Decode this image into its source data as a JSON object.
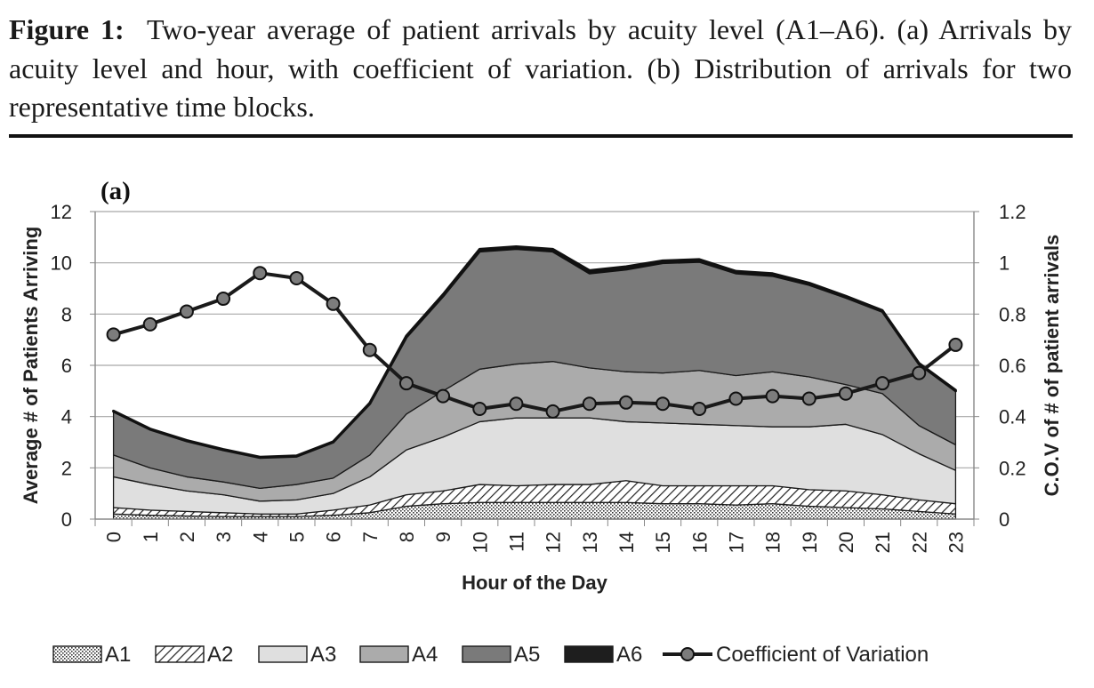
{
  "caption": {
    "label": "Figure 1:",
    "text": "Two-year average of patient arrivals by acuity level (A1–A6). (a) Arrivals by acuity level and hour, with coefficient of variation. (b) Distribution of arrivals for two representative time blocks."
  },
  "chart_data": {
    "type": "area",
    "stacked": true,
    "panel_label": "(a)",
    "xlabel": "Hour of the Day",
    "ylabel": "Average # of Patients Arriving",
    "y2label": "C.O.V of # of patient arrivals",
    "x": [
      0,
      1,
      2,
      3,
      4,
      5,
      6,
      7,
      8,
      9,
      10,
      11,
      12,
      13,
      14,
      15,
      16,
      17,
      18,
      19,
      20,
      21,
      22,
      23
    ],
    "ylim": [
      0,
      12
    ],
    "yticks": [
      "0",
      "2",
      "4",
      "6",
      "8",
      "10",
      "12"
    ],
    "y2lim": [
      0,
      1.2
    ],
    "y2ticks": [
      "0",
      "0.2",
      "0.4",
      "0.6",
      "0.8",
      "1",
      "1.2"
    ],
    "grid": true,
    "legend_position": "bottom",
    "series": [
      {
        "name": "A1",
        "fill": "dots",
        "values": [
          0.2,
          0.15,
          0.12,
          0.1,
          0.1,
          0.1,
          0.15,
          0.25,
          0.5,
          0.6,
          0.65,
          0.65,
          0.65,
          0.65,
          0.65,
          0.6,
          0.6,
          0.55,
          0.6,
          0.5,
          0.45,
          0.4,
          0.3,
          0.2
        ]
      },
      {
        "name": "A2",
        "fill": "hatch",
        "values": [
          0.25,
          0.2,
          0.18,
          0.15,
          0.1,
          0.1,
          0.2,
          0.3,
          0.45,
          0.5,
          0.7,
          0.65,
          0.7,
          0.7,
          0.85,
          0.7,
          0.7,
          0.75,
          0.7,
          0.65,
          0.65,
          0.55,
          0.45,
          0.4
        ]
      },
      {
        "name": "A3",
        "fill": "#dfdfdf",
        "values": [
          1.2,
          1.0,
          0.8,
          0.7,
          0.5,
          0.55,
          0.65,
          1.1,
          1.75,
          2.1,
          2.45,
          2.65,
          2.6,
          2.6,
          2.3,
          2.45,
          2.4,
          2.35,
          2.3,
          2.45,
          2.6,
          2.35,
          1.8,
          1.3
        ]
      },
      {
        "name": "A4",
        "fill": "#ababab",
        "values": [
          0.85,
          0.65,
          0.55,
          0.5,
          0.5,
          0.6,
          0.6,
          0.85,
          1.4,
          1.8,
          2.05,
          2.1,
          2.2,
          1.95,
          1.95,
          1.95,
          2.1,
          1.95,
          2.15,
          1.95,
          1.55,
          1.6,
          1.1,
          1.0
        ]
      },
      {
        "name": "A5",
        "fill": "#7a7a7a",
        "values": [
          1.7,
          1.5,
          1.4,
          1.25,
          1.2,
          1.1,
          1.4,
          2.0,
          3.0,
          3.7,
          4.6,
          4.5,
          4.3,
          3.7,
          4.0,
          4.3,
          4.25,
          4.0,
          3.75,
          3.6,
          3.4,
          3.2,
          2.4,
          2.1
        ]
      },
      {
        "name": "A6",
        "fill": "#1e1e1e",
        "values": [
          0.02,
          0.02,
          0.02,
          0.02,
          0.02,
          0.02,
          0.02,
          0.03,
          0.05,
          0.06,
          0.08,
          0.08,
          0.08,
          0.1,
          0.1,
          0.08,
          0.08,
          0.07,
          0.08,
          0.06,
          0.05,
          0.04,
          0.03,
          0.03
        ]
      },
      {
        "name": "Coefficient of Variation",
        "type": "line",
        "axis": "right",
        "values": [
          0.72,
          0.76,
          0.81,
          0.86,
          0.96,
          0.94,
          0.84,
          0.66,
          0.53,
          0.48,
          0.43,
          0.45,
          0.42,
          0.45,
          0.455,
          0.45,
          0.43,
          0.47,
          0.48,
          0.47,
          0.49,
          0.53,
          0.57,
          0.68
        ]
      }
    ]
  }
}
